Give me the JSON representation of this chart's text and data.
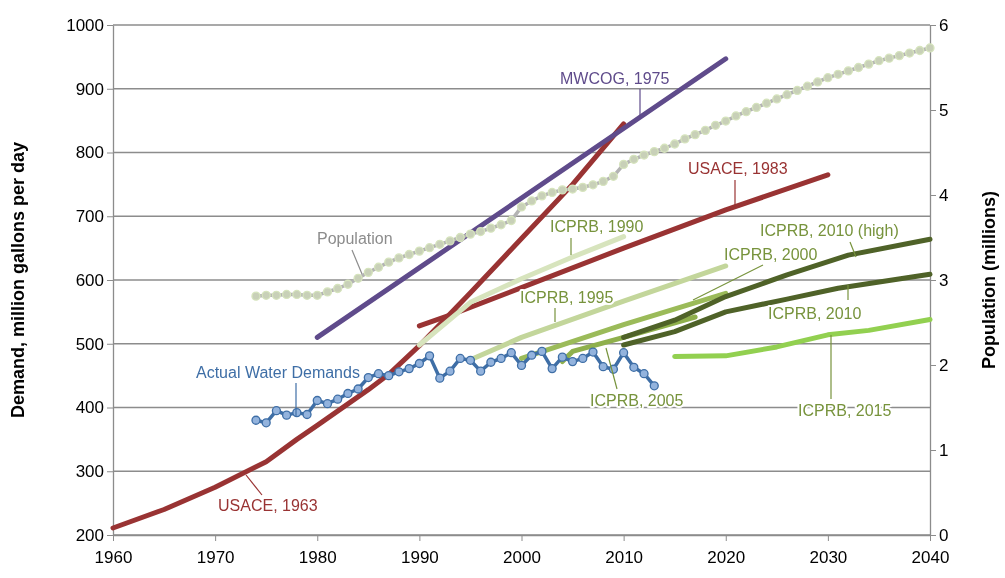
{
  "chart_data": {
    "type": "line",
    "ylabel": "Demand, million gallons per day",
    "y2label": "Population (millions)",
    "xlim": [
      1960,
      2040
    ],
    "xticks": [
      1960,
      1970,
      1980,
      1990,
      2000,
      2010,
      2020,
      2030,
      2040
    ],
    "ylim": [
      200,
      1000
    ],
    "yticks": [
      200,
      300,
      400,
      500,
      600,
      700,
      800,
      900,
      1000
    ],
    "y2lim": [
      0,
      6
    ],
    "y2ticks": [
      0,
      1,
      2,
      3,
      4,
      5,
      6
    ],
    "grid": "y",
    "line_style": "solid",
    "series": [
      {
        "name": "Actual Water Demands",
        "color": "#3e6ea6",
        "marker": "circle",
        "x": [
          1974,
          1975,
          1976,
          1977,
          1978,
          1979,
          1980,
          1981,
          1982,
          1983,
          1984,
          1985,
          1986,
          1987,
          1988,
          1989,
          1990,
          1991,
          1992,
          1993,
          1994,
          1995,
          1996,
          1997,
          1998,
          1999,
          2000,
          2001,
          2002,
          2003,
          2004,
          2005,
          2006,
          2007,
          2008,
          2009,
          2010,
          2011,
          2012,
          2013
        ],
        "values": [
          380,
          376,
          395,
          388,
          392,
          389,
          411,
          406,
          413,
          422,
          429,
          447,
          453,
          450,
          456,
          461,
          469,
          481,
          446,
          457,
          477,
          474,
          457,
          471,
          477,
          486,
          466,
          482,
          488,
          461,
          479,
          472,
          477,
          487,
          464,
          460,
          486,
          463,
          453,
          434
        ]
      },
      {
        "name": "Population",
        "color": "#b3b3b3",
        "marker": "circle",
        "axis": "y2",
        "x": [
          1974,
          1975,
          1976,
          1977,
          1978,
          1979,
          1980,
          1981,
          1982,
          1983,
          1984,
          1985,
          1986,
          1987,
          1988,
          1989,
          1990,
          1991,
          1992,
          1993,
          1994,
          1995,
          1996,
          1997,
          1998,
          1999,
          2000,
          2001,
          2002,
          2003,
          2004,
          2005,
          2006,
          2007,
          2008,
          2009,
          2010,
          2011,
          2012,
          2013,
          2014,
          2015,
          2016,
          2017,
          2018,
          2019,
          2020,
          2021,
          2022,
          2023,
          2024,
          2025,
          2026,
          2027,
          2028,
          2029,
          2030,
          2031,
          2032,
          2033,
          2034,
          2035,
          2036,
          2037,
          2038,
          2039,
          2040
        ],
        "values": [
          2.81,
          2.82,
          2.82,
          2.83,
          2.83,
          2.82,
          2.82,
          2.86,
          2.9,
          2.95,
          3.02,
          3.09,
          3.15,
          3.21,
          3.26,
          3.3,
          3.34,
          3.38,
          3.42,
          3.46,
          3.5,
          3.54,
          3.57,
          3.61,
          3.65,
          3.7,
          3.86,
          3.93,
          3.99,
          4.03,
          4.06,
          4.07,
          4.09,
          4.12,
          4.16,
          4.22,
          4.36,
          4.42,
          4.47,
          4.51,
          4.55,
          4.6,
          4.66,
          4.71,
          4.76,
          4.82,
          4.87,
          4.93,
          4.98,
          5.03,
          5.08,
          5.13,
          5.18,
          5.23,
          5.28,
          5.33,
          5.38,
          5.42,
          5.46,
          5.5,
          5.54,
          5.58,
          5.61,
          5.64,
          5.67,
          5.7,
          5.73
        ]
      },
      {
        "name": "USACE, 1963",
        "color": "#993333",
        "x": [
          1960,
          1965,
          1970,
          1975,
          1978,
          1980,
          1985,
          1987,
          1990,
          1995,
          2000,
          2005,
          2010
        ],
        "values": [
          211,
          240,
          275,
          315,
          350,
          372,
          428,
          452,
          497,
          580,
          665,
          750,
          845
        ]
      },
      {
        "name": "MWCOG, 1975",
        "color": "#5f4b8b",
        "x": [
          1980,
          2020
        ],
        "values": [
          510,
          947
        ]
      },
      {
        "name": "USACE, 1983",
        "color": "#993333",
        "x": [
          1990,
          1993,
          2000,
          2010,
          2020,
          2030
        ],
        "values": [
          528,
          545,
          588,
          650,
          710,
          765
        ]
      },
      {
        "name": "ICPRB, 1990",
        "color": "#d7e4bd",
        "x": [
          1990,
          1995,
          2000,
          2005,
          2010
        ],
        "values": [
          498,
          565,
          602,
          636,
          668
        ]
      },
      {
        "name": "ICPRB, 1995",
        "color": "#c3d69b",
        "x": [
          1995,
          2000,
          2010,
          2020
        ],
        "values": [
          475,
          510,
          567,
          622
        ]
      },
      {
        "name": "ICPRB, 2000",
        "color": "#9bbb59",
        "x": [
          2000,
          2010,
          2020
        ],
        "values": [
          477,
          530,
          579
        ]
      },
      {
        "name": "ICPRB, 2005",
        "color": "#8fb04c",
        "x": [
          2004,
          2005,
          2010,
          2017
        ],
        "values": [
          472,
          488,
          510,
          542
        ]
      },
      {
        "name": "ICPRB, 2010 (high)",
        "color": "#4f6228",
        "x": [
          2010,
          2015,
          2020,
          2026,
          2032,
          2040
        ],
        "values": [
          510,
          537,
          574,
          608,
          639,
          664
        ]
      },
      {
        "name": "ICPRB, 2010",
        "color": "#4f6228",
        "x": [
          2010,
          2015,
          2020,
          2026,
          2031,
          2040
        ],
        "values": [
          498,
          519,
          550,
          570,
          587,
          609
        ]
      },
      {
        "name": "ICPRB, 2015",
        "color": "#92d050",
        "x": [
          2015,
          2020,
          2025,
          2030,
          2034,
          2040
        ],
        "values": [
          480,
          481,
          495,
          514,
          521,
          538
        ]
      }
    ]
  }
}
